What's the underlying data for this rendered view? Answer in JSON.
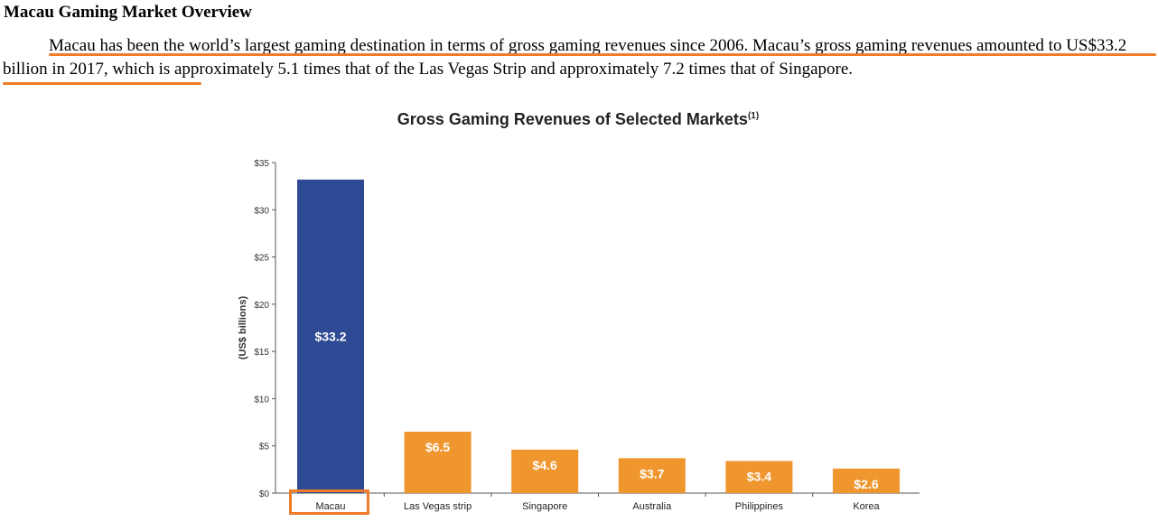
{
  "document": {
    "heading": "Macau Gaming Market Overview",
    "paragraph": "Macau has been the world’s largest gaming destination in terms of gross gaming revenues since 2006. Macau’s gross gaming revenues amounted to US$33.2 billion in 2017, which is approximately 5.1 times that of the Las Vegas Strip and approximately 7.2 times that of Singapore.",
    "highlight_color": "#f07c28"
  },
  "chart_data": {
    "type": "bar",
    "title": "Gross Gaming Revenues of Selected Markets",
    "title_footnote": "(1)",
    "ylabel": "(US$ billions)",
    "xlabel": "",
    "ylim": [
      0,
      35
    ],
    "yticks": [
      "$0",
      "$5",
      "$10",
      "$15",
      "$20",
      "$25",
      "$30",
      "$35"
    ],
    "categories": [
      "Macau",
      "Las Vegas strip",
      "Singapore",
      "Australia",
      "Philippines",
      "Korea"
    ],
    "values": [
      33.2,
      6.5,
      4.6,
      3.7,
      3.4,
      2.6
    ],
    "data_labels": [
      "$33.2",
      "$6.5",
      "$4.6",
      "$3.7",
      "$3.4",
      "$2.6"
    ],
    "colors": [
      "#2e4a94",
      "#f0962e",
      "#f0962e",
      "#f0962e",
      "#f0962e",
      "#f0962e"
    ],
    "grid": false,
    "legend": "none",
    "highlighted_category": "Macau"
  }
}
